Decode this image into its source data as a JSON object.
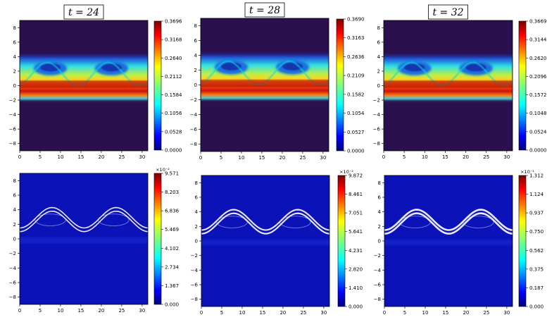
{
  "chart_data": [
    {
      "type": "heatmap",
      "panel": "t24-top",
      "title": "t = 24",
      "xlim": [
        0,
        31.4
      ],
      "ylim": [
        -9,
        9
      ],
      "xticks": [
        "0",
        "5",
        "10",
        "15",
        "20",
        "25",
        "30"
      ],
      "yticks": [
        "8",
        "6",
        "4",
        "2",
        "0",
        "−2",
        "−4",
        "−6",
        "−8"
      ],
      "colorbar": [
        "0.3696",
        "0.3168",
        "0.2640",
        "0.2112",
        "0.1584",
        "0.1056",
        "0.0528",
        "0.0000"
      ],
      "multiplier": "",
      "cmap": "jet"
    },
    {
      "type": "heatmap",
      "panel": "t28-top",
      "title": "t = 28",
      "xlim": [
        0,
        31.4
      ],
      "ylim": [
        -9,
        9
      ],
      "xticks": [
        "0",
        "5",
        "10",
        "15",
        "20",
        "25",
        "30"
      ],
      "yticks": [
        "8",
        "6",
        "4",
        "2",
        "0",
        "−2",
        "−4",
        "−6",
        "−8"
      ],
      "colorbar": [
        "0.3690",
        "0.3163",
        "0.2636",
        "0.2109",
        "0.1582",
        "0.1054",
        "0.0527",
        "0.0000"
      ],
      "multiplier": "",
      "cmap": "jet"
    },
    {
      "type": "heatmap",
      "panel": "t32-top",
      "title": "t = 32",
      "xlim": [
        0,
        31.4
      ],
      "ylim": [
        -9,
        9
      ],
      "xticks": [
        "0",
        "5",
        "10",
        "15",
        "20",
        "25",
        "30"
      ],
      "yticks": [
        "8",
        "6",
        "4",
        "2",
        "0",
        "−2",
        "−4",
        "−6",
        "−8"
      ],
      "colorbar": [
        "0.3669",
        "0.3144",
        "0.2620",
        "0.2096",
        "0.1572",
        "0.1048",
        "0.0524",
        "0.0000"
      ],
      "multiplier": "",
      "cmap": "jet"
    },
    {
      "type": "heatmap",
      "panel": "t24-bottom",
      "title": "",
      "xlim": [
        0,
        31.4
      ],
      "ylim": [
        -9,
        9
      ],
      "xticks": [
        "0",
        "5",
        "10",
        "15",
        "20",
        "25",
        "30"
      ],
      "yticks": [
        "8",
        "6",
        "4",
        "2",
        "0",
        "−2",
        "−4",
        "−6",
        "−8"
      ],
      "colorbar": [
        "9.571",
        "8.203",
        "6.836",
        "5.469",
        "4.102",
        "2.734",
        "1.367",
        "0.000"
      ],
      "multiplier": "×10⁻²",
      "cmap": "jet"
    },
    {
      "type": "heatmap",
      "panel": "t28-bottom",
      "title": "",
      "xlim": [
        0,
        31.4
      ],
      "ylim": [
        -9,
        9
      ],
      "xticks": [
        "0",
        "5",
        "10",
        "15",
        "20",
        "25",
        "30"
      ],
      "yticks": [
        "8",
        "6",
        "4",
        "2",
        "0",
        "−2",
        "−4",
        "−6",
        "−8"
      ],
      "colorbar": [
        "9.872",
        "8.461",
        "7.051",
        "5.641",
        "4.231",
        "2.820",
        "1.410",
        "0.000"
      ],
      "multiplier": "×10⁻²",
      "cmap": "jet"
    },
    {
      "type": "heatmap",
      "panel": "t32-bottom",
      "title": "",
      "xlim": [
        0,
        31.4
      ],
      "ylim": [
        -9,
        9
      ],
      "xticks": [
        "0",
        "5",
        "10",
        "15",
        "20",
        "25",
        "30"
      ],
      "yticks": [
        "8",
        "6",
        "4",
        "2",
        "0",
        "−2",
        "−4",
        "−6",
        "−8"
      ],
      "colorbar": [
        "1.312",
        "1.124",
        "0.937",
        "0.750",
        "0.562",
        "0.375",
        "0.187",
        "0.000"
      ],
      "multiplier": "×10⁻¹",
      "cmap": "jet"
    }
  ]
}
